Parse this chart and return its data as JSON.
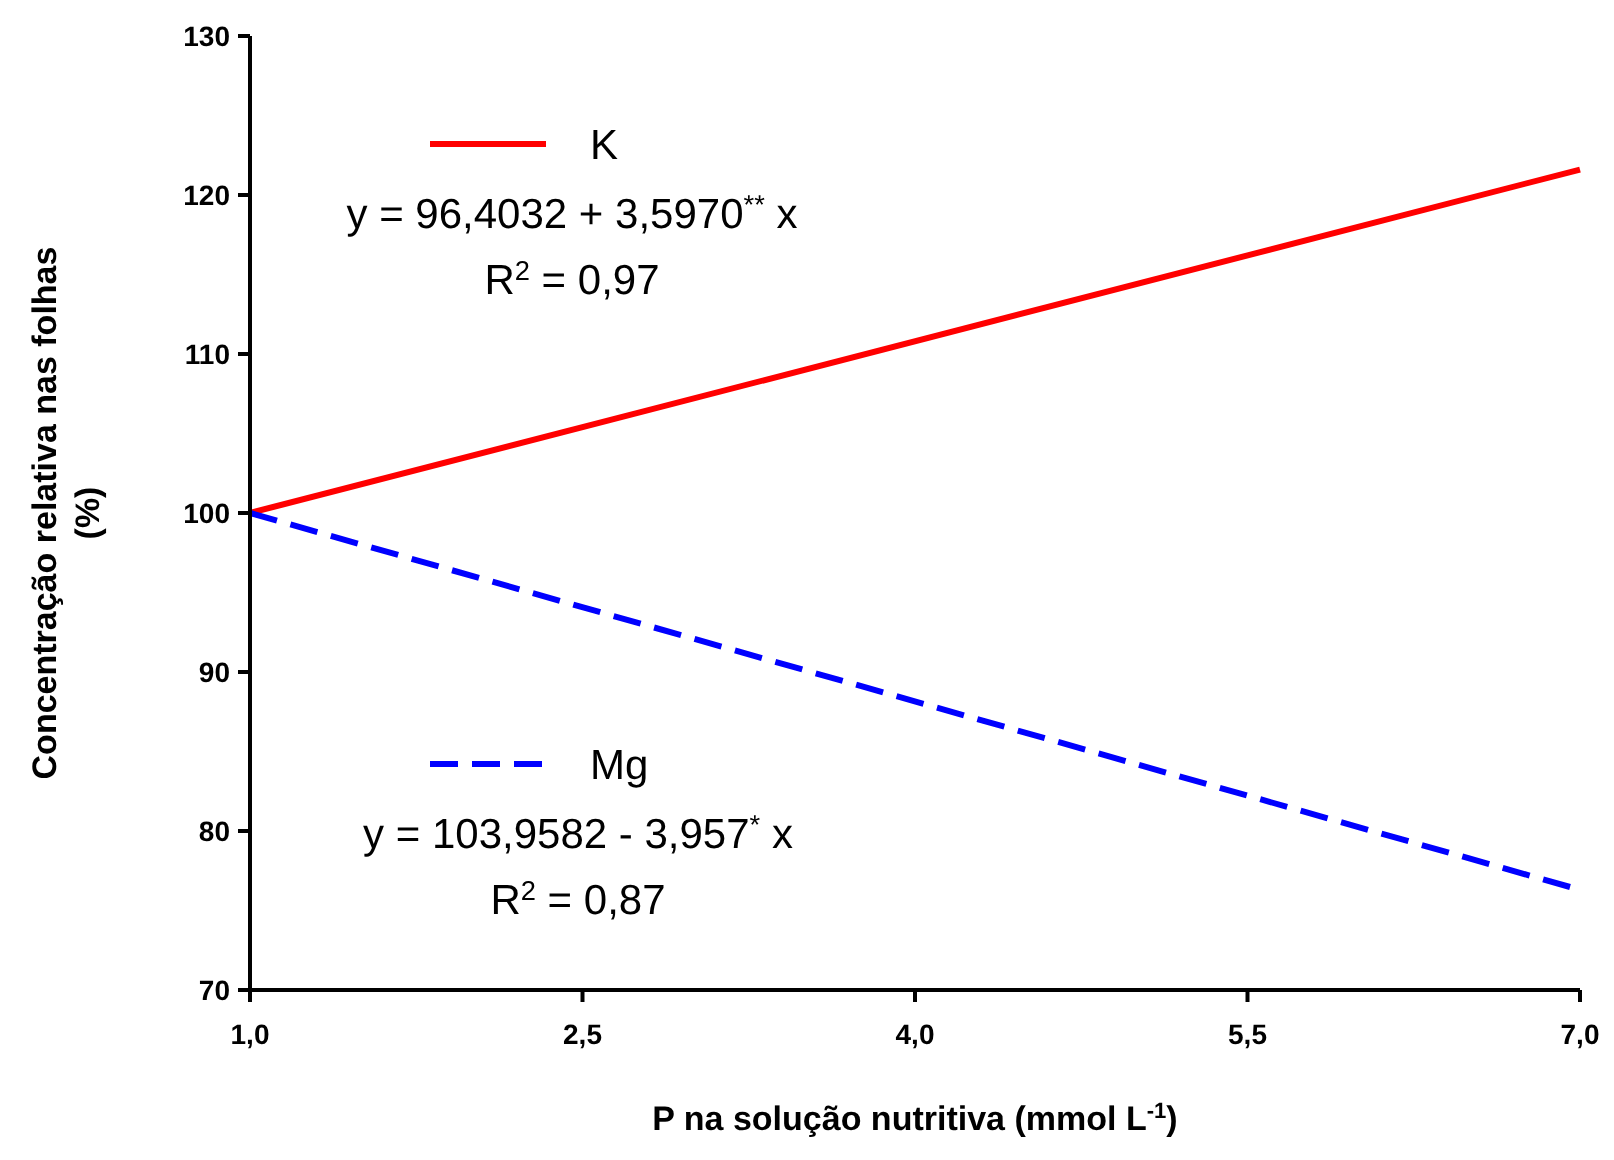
{
  "chart_data": {
    "type": "line",
    "xlabel": "P na solução nutritiva (mmol L$^{-1}$)",
    "ylabel": "Concentração relativa nas folhas (%)",
    "xlim": [
      1,
      7
    ],
    "xticks": [
      {
        "value": 1,
        "label": "1,0"
      },
      {
        "value": 2.5,
        "label": "2,5"
      },
      {
        "value": 4,
        "label": "4,0"
      },
      {
        "value": 5.5,
        "label": "5,5"
      },
      {
        "value": 7,
        "label": "7,0"
      }
    ],
    "x": [
      1,
      7
    ],
    "ylim": [
      70,
      130
    ],
    "yticks": [
      70,
      80,
      90,
      100,
      110,
      120,
      130
    ],
    "grid": false,
    "legend": "left",
    "marker": "none",
    "series": [
      {
        "name": "K",
        "color": "#ff0000",
        "values": [
          100,
          121.6
        ],
        "line_style": "solid"
      },
      {
        "name": "Mg",
        "color": "#0000ff",
        "values": [
          100,
          76.3
        ],
        "line_style": "dashed"
      }
    ],
    "annotations": [
      "y = 96,4032 + 3,5970$^{**}$ x",
      "R$^{2}$ = 0,97",
      "y = 103,9582 - 3,957$^{*}$ x",
      "R$^{2}$ = 0,87"
    ]
  }
}
